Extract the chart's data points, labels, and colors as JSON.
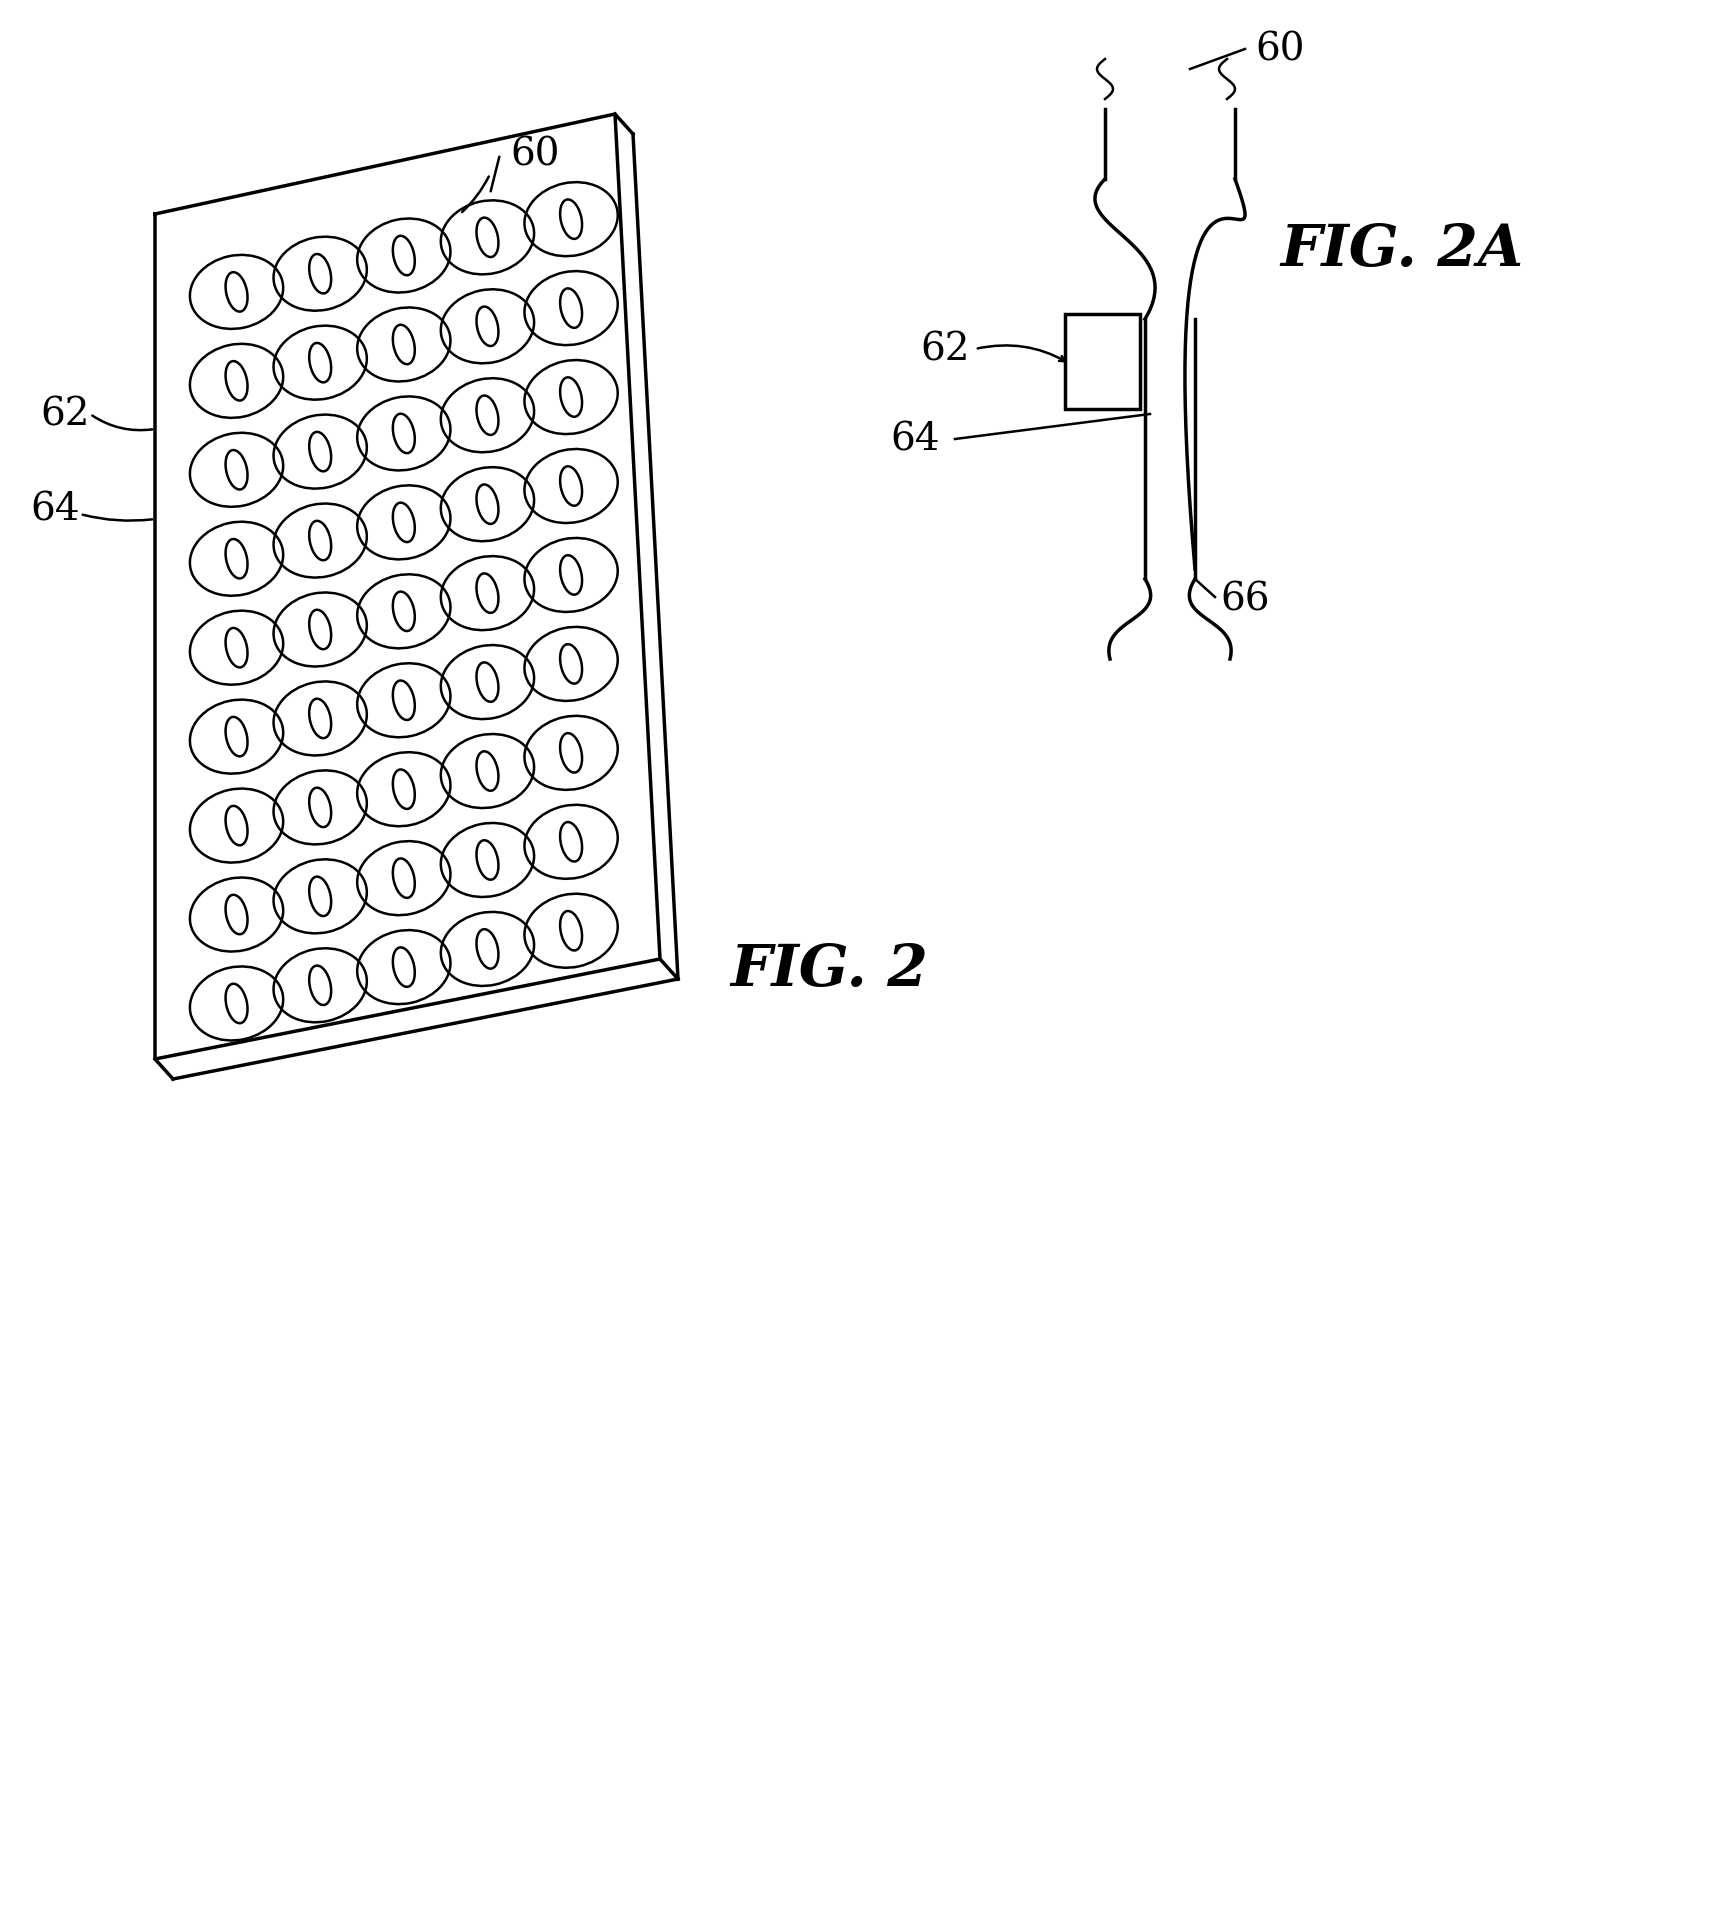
{
  "fig_label": "FIG. 2",
  "fig2a_label": "FIG. 2A",
  "background_color": "#ffffff",
  "line_color": "#000000",
  "label_60": "60",
  "label_62": "62",
  "label_64": "64",
  "label_66": "66",
  "label_60b": "60",
  "label_62b": "62",
  "label_64b": "64"
}
